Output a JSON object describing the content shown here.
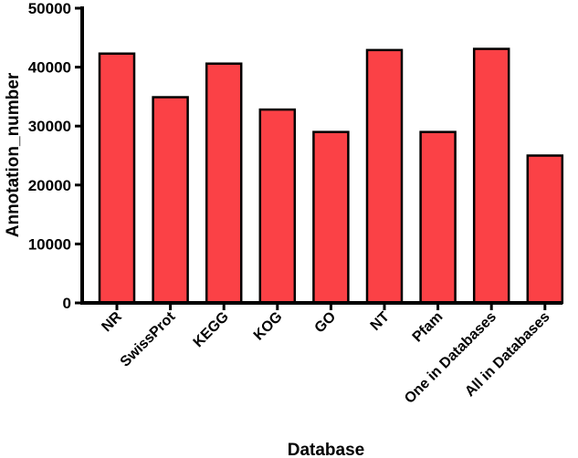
{
  "chart_data": {
    "type": "bar",
    "title": "",
    "xlabel": "Database",
    "ylabel": "Annotation_number",
    "categories": [
      "NR",
      "SwissProt",
      "KEGG",
      "KOG",
      "GO",
      "NT",
      "Pfam",
      "One in Databases",
      "All in Databases"
    ],
    "values": [
      42300,
      34900,
      40600,
      32800,
      29000,
      42900,
      29000,
      43100,
      25000
    ],
    "ylim": [
      0,
      50000
    ],
    "yticks": [
      0,
      10000,
      20000,
      30000,
      40000,
      50000
    ],
    "grid": false,
    "legend": "none",
    "bar_color": "#fb4146",
    "edge_color": "#000000"
  }
}
